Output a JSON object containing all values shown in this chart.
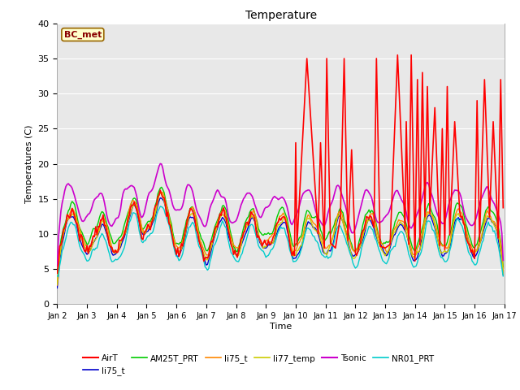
{
  "title": "Temperature",
  "ylabel": "Temperatures (C)",
  "xlabel": "Time",
  "ylim": [
    0,
    40
  ],
  "xtick_labels": [
    "Jan 2",
    "Jan 3",
    "Jan 4",
    "Jan 5",
    "Jan 6",
    "Jan 7",
    "Jan 8",
    "Jan 9",
    "Jan 10",
    "Jan 11",
    "Jan 12",
    "Jan 13",
    "Jan 14",
    "Jan 15",
    "Jan 16",
    "Jan 17"
  ],
  "ytick_values": [
    0,
    5,
    10,
    15,
    20,
    25,
    30,
    35,
    40
  ],
  "annotation_text": "BC_met",
  "annotation_bg": "#ffffcc",
  "annotation_border": "#996600",
  "background_color": "#e8e8e8",
  "series": {
    "AirT": {
      "color": "#ff0000",
      "lw": 1.2
    },
    "li75_t": {
      "color": "#0000cc",
      "lw": 1.0
    },
    "AM25T_PRT": {
      "color": "#00cc00",
      "lw": 1.0
    },
    "li75_t2": {
      "color": "#ff8800",
      "lw": 1.0
    },
    "li77_temp": {
      "color": "#cccc00",
      "lw": 1.0
    },
    "Tsonic": {
      "color": "#cc00cc",
      "lw": 1.2
    },
    "NR01_PRT": {
      "color": "#00cccc",
      "lw": 1.0
    }
  },
  "n_points": 360,
  "pts_per_day": 24
}
